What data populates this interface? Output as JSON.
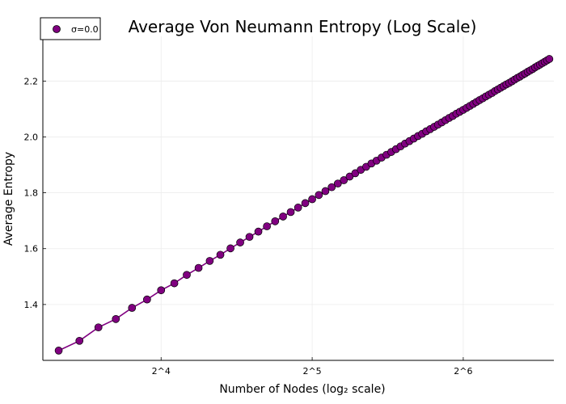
{
  "chart_data": {
    "type": "line",
    "title": "Average Von Neumann Entropy (Log Scale)",
    "xlabel": "Number of Nodes (log₂ scale)",
    "ylabel": "Average Entropy",
    "x_scale": "log2",
    "xlim": [
      9.3,
      97
    ],
    "ylim": [
      1.2,
      2.36
    ],
    "x_ticks": [
      {
        "value": 16,
        "label": "2^4"
      },
      {
        "value": 32,
        "label": "2^5"
      },
      {
        "value": 64,
        "label": "2^6"
      }
    ],
    "y_ticks": [
      {
        "value": 1.4,
        "label": "1.4"
      },
      {
        "value": 1.6,
        "label": "1.6"
      },
      {
        "value": 1.8,
        "label": "1.8"
      },
      {
        "value": 2.0,
        "label": "2.0"
      },
      {
        "value": 2.2,
        "label": "2.2"
      }
    ],
    "grid": true,
    "legend_position": "top-left",
    "series": [
      {
        "name": "σ=0.0",
        "color": "#800080",
        "marker": "circle",
        "x": [
          10,
          11,
          12,
          13,
          14,
          15,
          16,
          17,
          18,
          19,
          20,
          21,
          22,
          23,
          24,
          25,
          26,
          27,
          28,
          29,
          30,
          31,
          32,
          33,
          34,
          35,
          36,
          37,
          38,
          39,
          40,
          41,
          42,
          43,
          44,
          45,
          46,
          47,
          48,
          49,
          50,
          51,
          52,
          53,
          54,
          55,
          56,
          57,
          58,
          59,
          60,
          61,
          62,
          63,
          64,
          65,
          66,
          67,
          68,
          69,
          70,
          71,
          72,
          73,
          74,
          75,
          76,
          77,
          78,
          79,
          80,
          81,
          82,
          83,
          84,
          85,
          86,
          87,
          88,
          89,
          90,
          91,
          92,
          93,
          94,
          95
        ],
        "y": [
          1.235,
          1.27,
          1.318,
          1.348,
          1.388,
          1.418,
          1.451,
          1.476,
          1.506,
          1.531,
          1.556,
          1.578,
          1.601,
          1.622,
          1.642,
          1.661,
          1.68,
          1.698,
          1.715,
          1.731,
          1.747,
          1.763,
          1.777,
          1.792,
          1.806,
          1.82,
          1.833,
          1.845,
          1.858,
          1.87,
          1.882,
          1.893,
          1.905,
          1.915,
          1.926,
          1.936,
          1.946,
          1.956,
          1.966,
          1.976,
          1.985,
          1.994,
          2.003,
          2.011,
          2.02,
          2.028,
          2.036,
          2.044,
          2.052,
          2.06,
          2.068,
          2.075,
          2.083,
          2.09,
          2.097,
          2.104,
          2.111,
          2.118,
          2.125,
          2.132,
          2.138,
          2.145,
          2.151,
          2.157,
          2.164,
          2.17,
          2.176,
          2.182,
          2.188,
          2.193,
          2.199,
          2.205,
          2.211,
          2.216,
          2.222,
          2.227,
          2.233,
          2.238,
          2.243,
          2.249,
          2.254,
          2.259,
          2.264,
          2.269,
          2.274,
          2.279
        ]
      }
    ]
  }
}
